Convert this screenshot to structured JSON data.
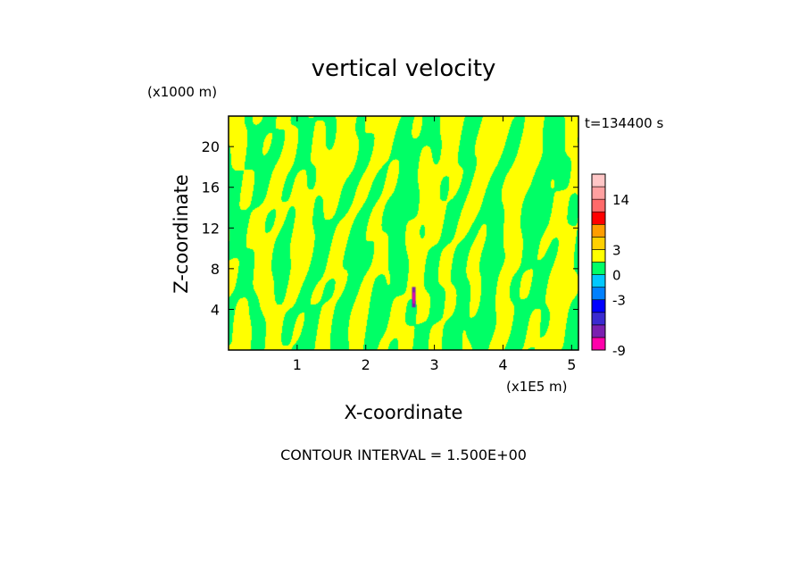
{
  "chart_data": {
    "type": "heatmap",
    "title": "vertical velocity",
    "xlabel": "X-coordinate",
    "ylabel": "Z-coordinate",
    "x_unit": "(x1E5 m)",
    "y_unit": "(x1000 m)",
    "time_label": "t=134400 s",
    "xlim": [
      0,
      5.1
    ],
    "ylim": [
      0,
      23
    ],
    "x_ticks": [
      1,
      2,
      3,
      4,
      5
    ],
    "y_ticks": [
      4,
      8,
      12,
      16,
      20
    ],
    "contour_interval_text": "CONTOUR INTERVAL = 1.500E+00",
    "dominant_levels": [
      "-1.5 to 0 (green)",
      "0 to 1.5 (yellow)"
    ],
    "anomaly": {
      "x": 2.7,
      "z_range": [
        4.2,
        6.2
      ]
    },
    "colorbar": {
      "levels": [
        -9,
        -7.5,
        -6,
        -4.5,
        -3,
        -1.5,
        0,
        1.5,
        3,
        4.5,
        6,
        10,
        14,
        18,
        22
      ],
      "colors": [
        "#ff00aa",
        "#7a1fb0",
        "#3a2ad0",
        "#0000ff",
        "#0080ff",
        "#00c8ff",
        "#00ff66",
        "#ffff00",
        "#ffd000",
        "#ff9d00",
        "#ff0000",
        "#ff6a6a",
        "#ffa0a0",
        "#ffc6c6"
      ],
      "tick_labels": [
        {
          "value": -9,
          "label": "-9"
        },
        {
          "value": -3,
          "label": "-3"
        },
        {
          "value": 0,
          "label": "0"
        },
        {
          "value": 3,
          "label": "3"
        },
        {
          "value": 14,
          "label": "14"
        }
      ]
    },
    "colors": {
      "positive_weak": "#ffff00",
      "negative_weak": "#00ff66"
    }
  }
}
